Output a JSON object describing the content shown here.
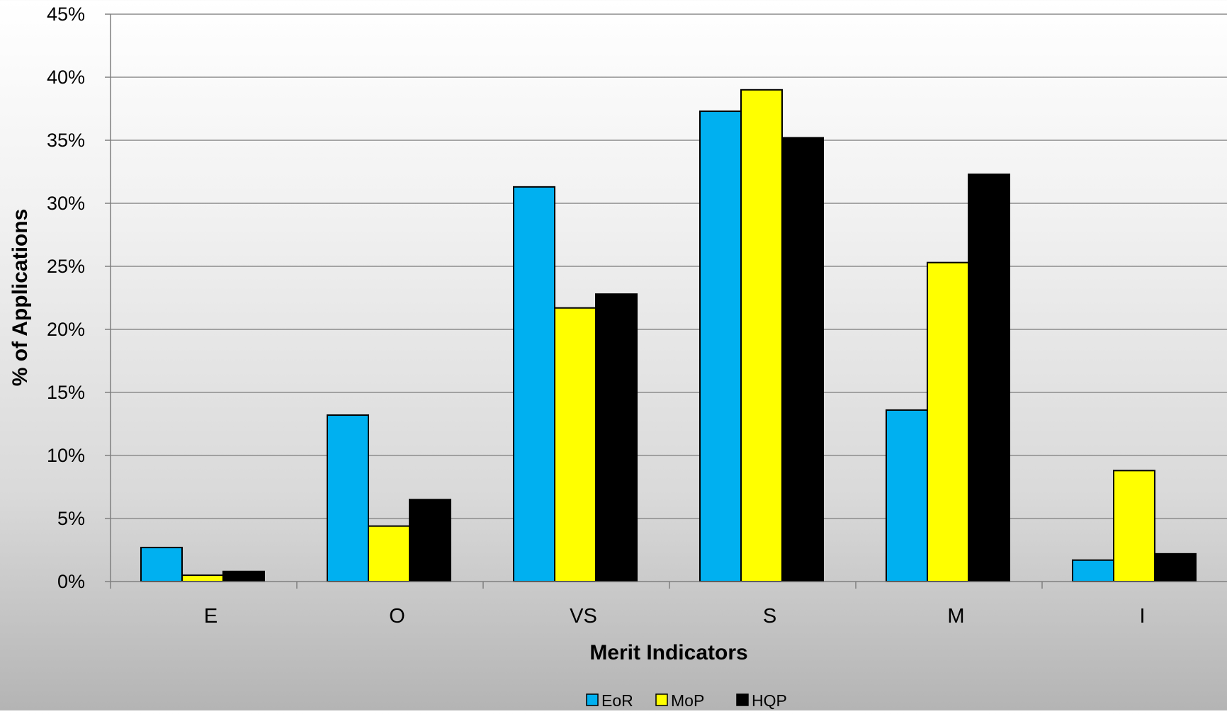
{
  "chart_data": {
    "type": "bar",
    "title": "",
    "xlabel": "Merit Indicators",
    "ylabel": "% of Applications",
    "categories": [
      "E",
      "O",
      "VS",
      "S",
      "M",
      "I"
    ],
    "ylim": [
      0,
      45
    ],
    "yticks": [
      0,
      5,
      10,
      15,
      20,
      25,
      30,
      35,
      40,
      45
    ],
    "ytick_labels": [
      "0%",
      "5%",
      "10%",
      "15%",
      "20%",
      "25%",
      "30%",
      "35%",
      "40%",
      "45%"
    ],
    "grid": true,
    "legend_position": "bottom-center",
    "series": [
      {
        "name": "EoR",
        "color": "#00b0f0",
        "values": [
          2.7,
          13.2,
          31.3,
          37.3,
          13.6,
          1.7
        ]
      },
      {
        "name": "MoP",
        "color": "#ffff00",
        "values": [
          0.5,
          4.4,
          21.7,
          39.0,
          25.3,
          8.8
        ]
      },
      {
        "name": "HQP",
        "color": "#000000",
        "values": [
          0.8,
          6.5,
          22.8,
          35.2,
          32.3,
          2.2
        ]
      }
    ]
  }
}
